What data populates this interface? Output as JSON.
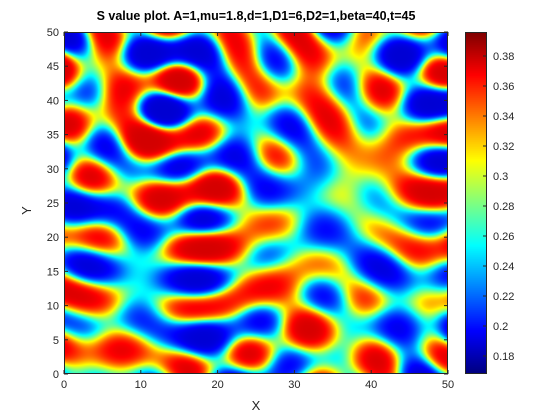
{
  "chart_data": {
    "type": "heatmap",
    "title": "S value plot. A=1,mu=1.8,d=1,D1=6,D2=1,beta=40,t=45",
    "xlabel": "X",
    "ylabel": "Y",
    "xlim": [
      0,
      50
    ],
    "ylim": [
      0,
      50
    ],
    "x_ticks": [
      "0",
      "10",
      "20",
      "30",
      "40",
      "50"
    ],
    "y_ticks": [
      "0",
      "5",
      "10",
      "15",
      "20",
      "25",
      "30",
      "35",
      "40",
      "45",
      "50"
    ],
    "colormap": "jet",
    "colorbar": {
      "min": 0.168,
      "max": 0.396,
      "ticks": [
        "0.18",
        "0.2",
        "0.22",
        "0.24",
        "0.26",
        "0.28",
        "0.3",
        "0.32",
        "0.34",
        "0.36",
        "0.38"
      ]
    },
    "pattern": "labyrinthine stripes and spots (Turing pattern)"
  }
}
